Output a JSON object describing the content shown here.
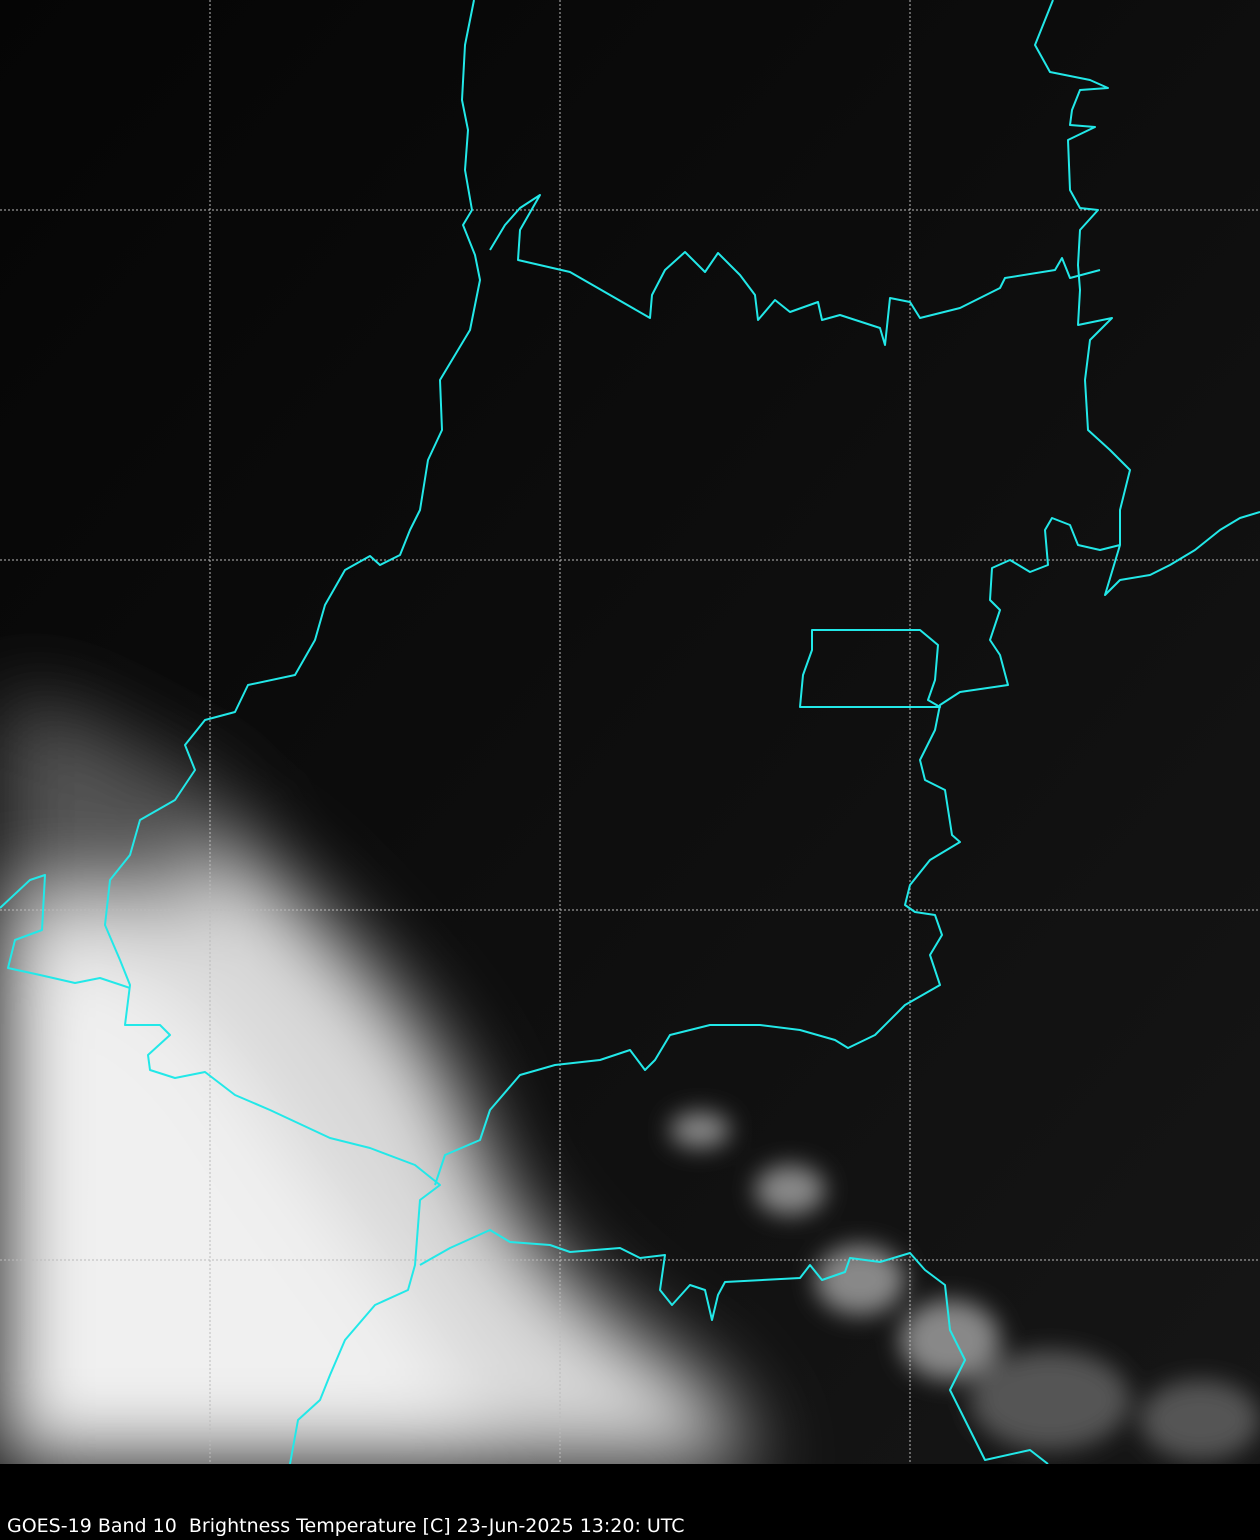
{
  "caption": "GOES-19 Band 10  Brightness Temperature [C] 23-Jun-2025 13:20: UTC",
  "map": {
    "background_color": "#0a0a0a",
    "border_color": "#22e8e8",
    "grid_color": "#bbbbbb",
    "grid": true,
    "grid_style": "dotted",
    "cloud_color": "#e8e8e8"
  }
}
